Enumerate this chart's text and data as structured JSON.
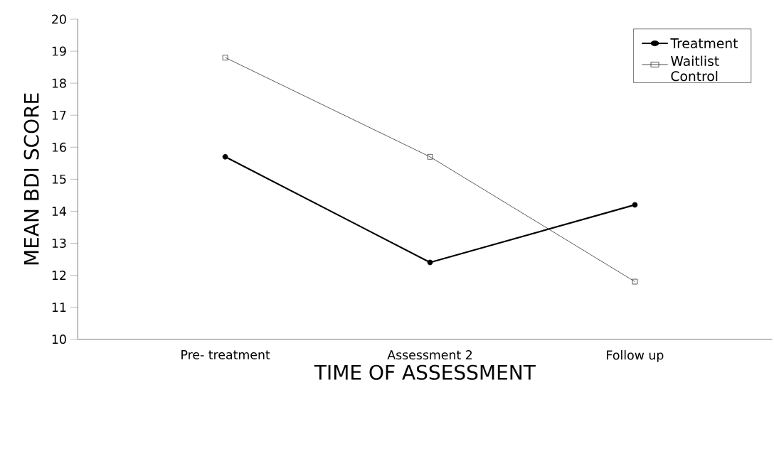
{
  "chart_data": {
    "type": "line",
    "xlabel": "TIME OF ASSESSMENT",
    "ylabel": "MEAN BDI SCORE",
    "categories": [
      "Pre- treatment",
      "Assessment 2",
      "Follow up"
    ],
    "series": [
      {
        "name": "Treatment",
        "color": "#000000",
        "marker": "circle",
        "values": [
          15.7,
          12.4,
          14.2
        ]
      },
      {
        "name": "Waitlist Control",
        "color": "#333333",
        "marker": "square",
        "values": [
          18.8,
          15.7,
          11.8
        ]
      }
    ],
    "ylim": [
      10,
      20
    ],
    "yticks": [
      10,
      11,
      12,
      13,
      14,
      15,
      16,
      17,
      18,
      19,
      20
    ],
    "grid": false,
    "legend": "top right",
    "line_style": "solid"
  }
}
